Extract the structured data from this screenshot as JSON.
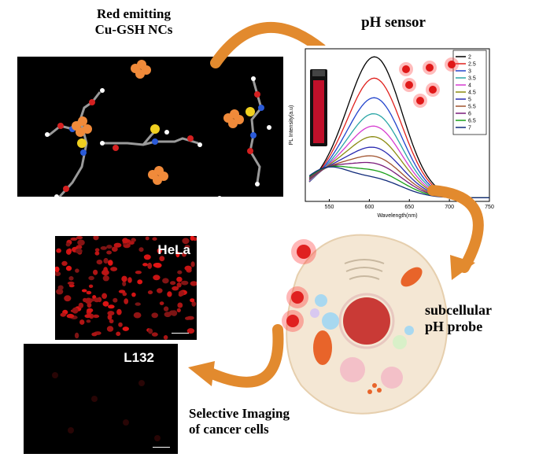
{
  "labels": {
    "red_emitting": "Red emitting\nCu-GSH NCs",
    "ph_sensor": "pH sensor",
    "subcellular": "subcellular\npH probe",
    "selective": "Selective Imaging\nof cancer cells"
  },
  "cells": {
    "hela": "HeLa",
    "l132": "L132"
  },
  "chart_data": {
    "type": "line",
    "xlabel": "Wavelength(nm)",
    "ylabel": "PL Intensity(a.u)",
    "xlim": [
      520,
      750
    ],
    "xticks": [
      "550",
      "600",
      "650",
      "700",
      "750"
    ],
    "series": [
      {
        "name": "2",
        "color": "#000000",
        "peak": 0.78
      },
      {
        "name": "2.5",
        "color": "#e0201c",
        "peak": 0.66
      },
      {
        "name": "3",
        "color": "#2244cc",
        "peak": 0.55
      },
      {
        "name": "3.5",
        "color": "#2aa6a6",
        "peak": 0.46
      },
      {
        "name": "4",
        "color": "#d63bd0",
        "peak": 0.39
      },
      {
        "name": "4.5",
        "color": "#8a8a10",
        "peak": 0.33
      },
      {
        "name": "5",
        "color": "#2a2ab0",
        "peak": 0.27
      },
      {
        "name": "5.5",
        "color": "#a0522d",
        "peak": 0.22
      },
      {
        "name": "6",
        "color": "#7a1a7a",
        "peak": 0.18
      },
      {
        "name": "6.5",
        "color": "#18a018",
        "peak": 0.14
      },
      {
        "name": "7",
        "color": "#102a7a",
        "peak": 0.1
      }
    ]
  }
}
